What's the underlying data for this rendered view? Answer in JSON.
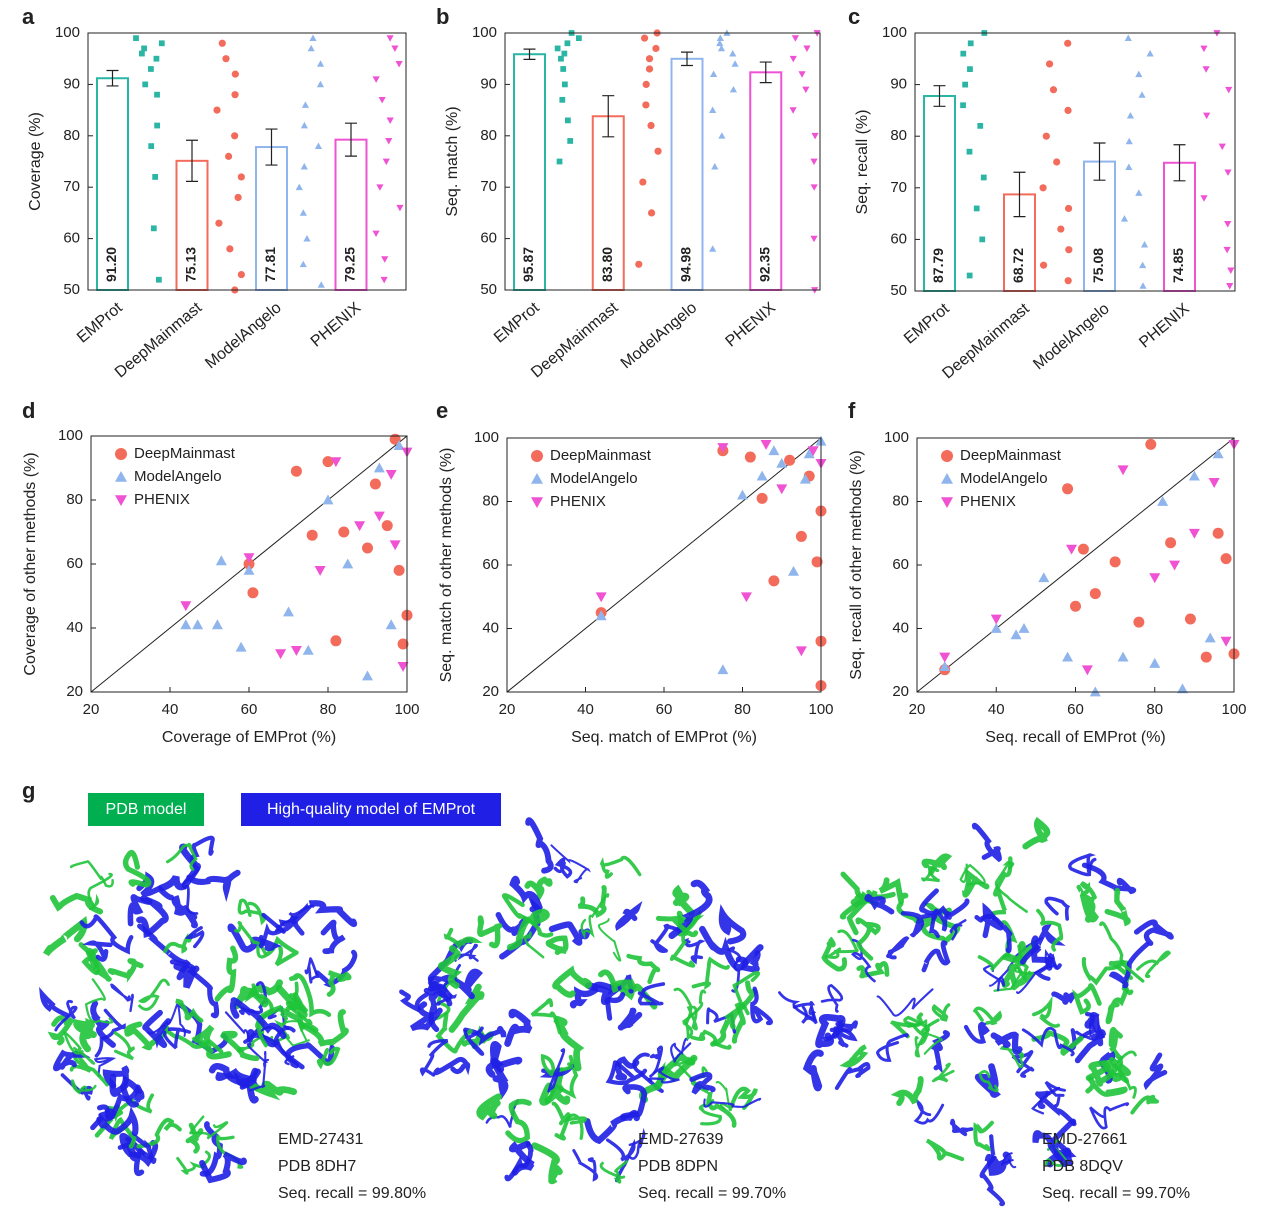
{
  "chart_data": [
    {
      "type": "bar",
      "panel": "a",
      "ylabel": "Coverage (%)",
      "categories": [
        "EMProt",
        "DeepMainmast",
        "ModelAngelo",
        "PHENIX"
      ],
      "values": [
        91.2,
        75.13,
        77.81,
        79.25
      ],
      "value_labels": [
        "91.20",
        "75.13",
        "77.81",
        "79.25"
      ],
      "errors": [
        1.5,
        4,
        3.5,
        3.2
      ],
      "colors": [
        "#2bb5a4",
        "#f26b5b",
        "#8fb5ec",
        "#ef52d3"
      ],
      "markers": [
        "square",
        "circle",
        "triangle-up",
        "triangle-down"
      ],
      "points": [
        [
          99,
          98,
          97,
          96,
          95,
          93,
          90,
          88,
          82,
          78,
          72,
          62,
          52
        ],
        [
          98,
          95,
          92,
          88,
          85,
          80,
          76,
          72,
          68,
          63,
          58,
          53,
          50
        ],
        [
          99,
          97,
          94,
          90,
          86,
          82,
          78,
          74,
          70,
          65,
          60,
          55,
          51
        ],
        [
          99,
          97,
          94,
          91,
          87,
          83,
          79,
          75,
          70,
          66,
          61,
          56,
          52
        ]
      ],
      "ylim": [
        50,
        100
      ],
      "yticks": [
        50,
        60,
        70,
        80,
        90,
        100
      ]
    },
    {
      "type": "bar",
      "panel": "b",
      "ylabel": "Seq. match (%)",
      "categories": [
        "EMProt",
        "DeepMainmast",
        "ModelAngelo",
        "PHENIX"
      ],
      "values": [
        95.87,
        83.8,
        94.98,
        92.35
      ],
      "value_labels": [
        "95.87",
        "83.80",
        "94.98",
        "92.35"
      ],
      "errors": [
        1,
        4,
        1.3,
        2
      ],
      "colors": [
        "#2bb5a4",
        "#f26b5b",
        "#8fb5ec",
        "#ef52d3"
      ],
      "markers": [
        "square",
        "circle",
        "triangle-up",
        "triangle-down"
      ],
      "points": [
        [
          100,
          99,
          98,
          97,
          96,
          95,
          93,
          90,
          87,
          83,
          79,
          75
        ],
        [
          100,
          99,
          97,
          95,
          93,
          90,
          86,
          82,
          77,
          71,
          65,
          55
        ],
        [
          100,
          99,
          98,
          97,
          96,
          94,
          92,
          89,
          85,
          80,
          74,
          58
        ],
        [
          100,
          99,
          97,
          95,
          92,
          89,
          85,
          80,
          75,
          70,
          60,
          50
        ]
      ],
      "ylim": [
        50,
        100
      ],
      "yticks": [
        50,
        60,
        70,
        80,
        90,
        100
      ]
    },
    {
      "type": "bar",
      "panel": "c",
      "ylabel": "Seq. recall (%)",
      "categories": [
        "EMProt",
        "DeepMainmast",
        "ModelAngelo",
        "PHENIX"
      ],
      "values": [
        87.79,
        68.72,
        75.08,
        74.85
      ],
      "value_labels": [
        "87.79",
        "68.72",
        "75.08",
        "74.85"
      ],
      "errors": [
        2,
        4.3,
        3.6,
        3.5
      ],
      "colors": [
        "#2bb5a4",
        "#f26b5b",
        "#8fb5ec",
        "#ef52d3"
      ],
      "markers": [
        "square",
        "circle",
        "triangle-up",
        "triangle-down"
      ],
      "points": [
        [
          100,
          98,
          96,
          93,
          90,
          86,
          82,
          77,
          72,
          66,
          60,
          53
        ],
        [
          98,
          94,
          89,
          85,
          80,
          75,
          70,
          66,
          62,
          58,
          55,
          52
        ],
        [
          99,
          96,
          92,
          88,
          84,
          79,
          74,
          69,
          64,
          59,
          55,
          51
        ],
        [
          100,
          97,
          93,
          89,
          84,
          78,
          73,
          68,
          63,
          58,
          54,
          51
        ]
      ],
      "ylim": [
        50,
        100
      ],
      "yticks": [
        50,
        60,
        70,
        80,
        90,
        100
      ]
    },
    {
      "type": "scatter",
      "panel": "d",
      "xlabel": "Coverage of EMProt (%)",
      "ylabel": "Coverage of other methods (%)",
      "series": [
        {
          "name": "DeepMainmast",
          "color": "#f26b5b",
          "marker": "circle",
          "x": [
            72,
            80,
            97,
            60,
            61,
            82,
            90,
            95,
            98,
            100,
            99,
            92,
            84,
            76
          ],
          "y": [
            89,
            92,
            99,
            60,
            51,
            36,
            65,
            72,
            58,
            44,
            35,
            85,
            70,
            69
          ]
        },
        {
          "name": "ModelAngelo",
          "color": "#8fb5ec",
          "marker": "triangle-up",
          "x": [
            44,
            47,
            52,
            53,
            58,
            60,
            70,
            75,
            85,
            90,
            96,
            98,
            80,
            93
          ],
          "y": [
            41,
            41,
            41,
            61,
            34,
            58,
            45,
            33,
            60,
            25,
            41,
            97,
            80,
            90
          ]
        },
        {
          "name": "PHENIX",
          "color": "#ef52d3",
          "marker": "triangle-down",
          "x": [
            44,
            60,
            68,
            72,
            78,
            82,
            88,
            93,
            96,
            99,
            100,
            97
          ],
          "y": [
            47,
            62,
            32,
            33,
            58,
            92,
            72,
            75,
            88,
            28,
            95,
            66
          ]
        }
      ],
      "xlim": [
        20,
        100
      ],
      "xticks": [
        20,
        40,
        60,
        80,
        100
      ],
      "ylim": [
        20,
        100
      ],
      "yticks": [
        20,
        40,
        60,
        80,
        100
      ]
    },
    {
      "type": "scatter",
      "panel": "e",
      "xlabel": "Seq. match of EMProt (%)",
      "ylabel": "Seq. match of other methods (%)",
      "series": [
        {
          "name": "DeepMainmast",
          "color": "#f26b5b",
          "marker": "circle",
          "x": [
            44,
            75,
            82,
            85,
            88,
            95,
            99,
            100,
            100,
            100,
            97,
            92
          ],
          "y": [
            45,
            96,
            94,
            81,
            55,
            69,
            61,
            36,
            22,
            77,
            88,
            93
          ]
        },
        {
          "name": "ModelAngelo",
          "color": "#8fb5ec",
          "marker": "triangle-up",
          "x": [
            44,
            75,
            80,
            85,
            90,
            93,
            96,
            100,
            97,
            88
          ],
          "y": [
            44,
            27,
            82,
            88,
            92,
            58,
            87,
            99,
            95,
            96
          ]
        },
        {
          "name": "PHENIX",
          "color": "#ef52d3",
          "marker": "triangle-down",
          "x": [
            44,
            75,
            81,
            95,
            90,
            98,
            100,
            86
          ],
          "y": [
            50,
            97,
            50,
            33,
            84,
            96,
            92,
            98
          ]
        }
      ],
      "xlim": [
        20,
        100
      ],
      "xticks": [
        20,
        40,
        60,
        80,
        100
      ],
      "ylim": [
        20,
        100
      ],
      "yticks": [
        20,
        40,
        60,
        80,
        100
      ]
    },
    {
      "type": "scatter",
      "panel": "f",
      "xlabel": "Seq. recall of EMProt (%)",
      "ylabel": "Seq. recall of other methods (%)",
      "series": [
        {
          "name": "DeepMainmast",
          "color": "#f26b5b",
          "marker": "circle",
          "x": [
            27,
            58,
            60,
            62,
            65,
            70,
            76,
            79,
            84,
            89,
            93,
            98,
            100,
            96
          ],
          "y": [
            27,
            84,
            47,
            65,
            51,
            61,
            42,
            98,
            67,
            43,
            31,
            62,
            32,
            70
          ]
        },
        {
          "name": "ModelAngelo",
          "color": "#8fb5ec",
          "marker": "triangle-up",
          "x": [
            27,
            40,
            45,
            47,
            52,
            58,
            65,
            72,
            80,
            87,
            94,
            96,
            90,
            82
          ],
          "y": [
            28,
            40,
            38,
            40,
            56,
            31,
            20,
            31,
            29,
            21,
            37,
            95,
            88,
            80
          ]
        },
        {
          "name": "PHENIX",
          "color": "#ef52d3",
          "marker": "triangle-down",
          "x": [
            27,
            40,
            59,
            63,
            72,
            80,
            90,
            95,
            100,
            98,
            85
          ],
          "y": [
            31,
            43,
            65,
            27,
            90,
            56,
            70,
            86,
            98,
            36,
            60
          ]
        }
      ],
      "xlim": [
        20,
        100
      ],
      "xticks": [
        20,
        40,
        60,
        80,
        100
      ],
      "ylim": [
        20,
        100
      ],
      "yticks": [
        20,
        40,
        60,
        80,
        100
      ]
    }
  ],
  "panel_g": {
    "panel": "g",
    "legend": [
      "PDB model",
      "High-quality model of EMProt"
    ],
    "structures": [
      {
        "emd": "EMD-27431",
        "pdb": "PDB 8DH7",
        "recall": "Seq. recall = 99.80%"
      },
      {
        "emd": "EMD-27639",
        "pdb": "PDB 8DPN",
        "recall": "Seq. recall = 99.70%"
      },
      {
        "emd": "EMD-27661",
        "pdb": "PDB 8DQV",
        "recall": "Seq. recall = 99.70%"
      }
    ]
  }
}
